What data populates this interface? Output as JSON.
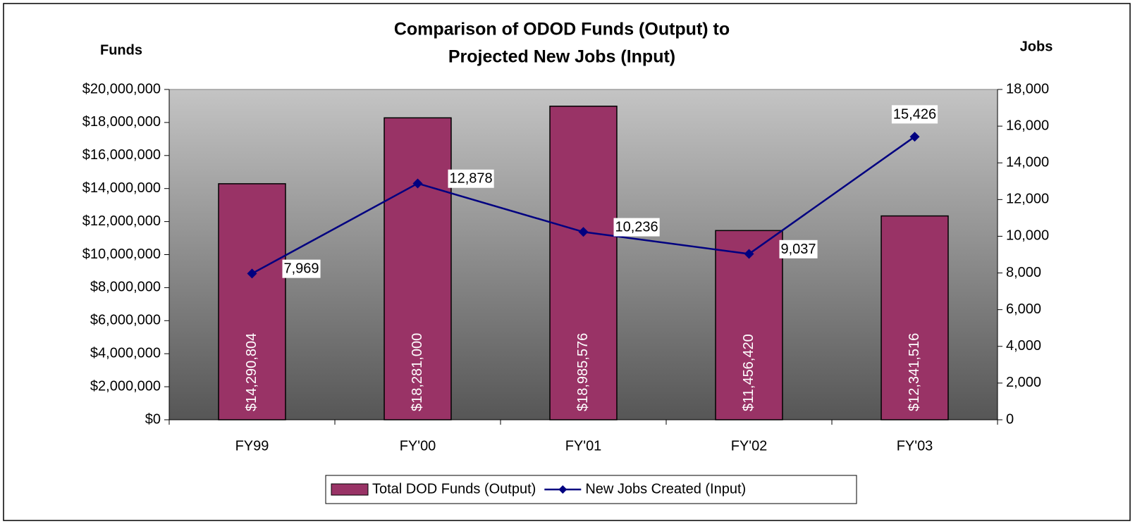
{
  "chart_data": {
    "type": "bar",
    "title": [
      "Comparison of ODOD Funds (Output) to",
      "Projected New Jobs (Input)"
    ],
    "y_label": "Funds",
    "y2_label": "Jobs",
    "categories": [
      "FY99",
      "FY'00",
      "FY'01",
      "FY'02",
      "FY'03"
    ],
    "series": [
      {
        "name": "Total DOD Funds (Output)",
        "type": "bar",
        "color": "#993366",
        "values": [
          14290804,
          18281000,
          18985576,
          11456420,
          12341516
        ],
        "value_labels": [
          "$14,290,804",
          "$18,281,000",
          "$18,985,576",
          "$11,456,420",
          "$12,341,516"
        ]
      },
      {
        "name": "New Jobs Created (Input)",
        "type": "line",
        "axis": "y2",
        "color": "#000080",
        "values": [
          7969,
          12878,
          10236,
          9037,
          15426
        ],
        "value_labels": [
          "7,969",
          "12,878",
          "10,236",
          "9,037",
          "15,426"
        ]
      }
    ],
    "ylim": [
      0,
      20000000
    ],
    "yticks": [
      {
        "value": 0,
        "label": "$0"
      },
      {
        "value": 2000000,
        "label": "$2,000,000"
      },
      {
        "value": 4000000,
        "label": "$4,000,000"
      },
      {
        "value": 6000000,
        "label": "$6,000,000"
      },
      {
        "value": 8000000,
        "label": "$8,000,000"
      },
      {
        "value": 10000000,
        "label": "$10,000,000"
      },
      {
        "value": 12000000,
        "label": "$12,000,000"
      },
      {
        "value": 14000000,
        "label": "$14,000,000"
      },
      {
        "value": 16000000,
        "label": "$16,000,000"
      },
      {
        "value": 18000000,
        "label": "$18,000,000"
      },
      {
        "value": 20000000,
        "label": "$20,000,000"
      }
    ],
    "y2lim": [
      0,
      18000
    ],
    "y2ticks": [
      0,
      {
        "value": 2000,
        "label": "2,000"
      },
      {
        "value": 4000,
        "label": "4,000"
      },
      {
        "value": 6000,
        "label": "6,000"
      },
      {
        "value": 8000,
        "label": "8,000"
      },
      {
        "value": 10000,
        "label": "10,000"
      },
      {
        "value": 12000,
        "label": "12,000"
      },
      {
        "value": 14000,
        "label": "14,000"
      },
      {
        "value": 16000,
        "label": "16,000"
      },
      {
        "value": 18000,
        "label": "18,000"
      }
    ],
    "grid": false,
    "legend": "bottom"
  }
}
